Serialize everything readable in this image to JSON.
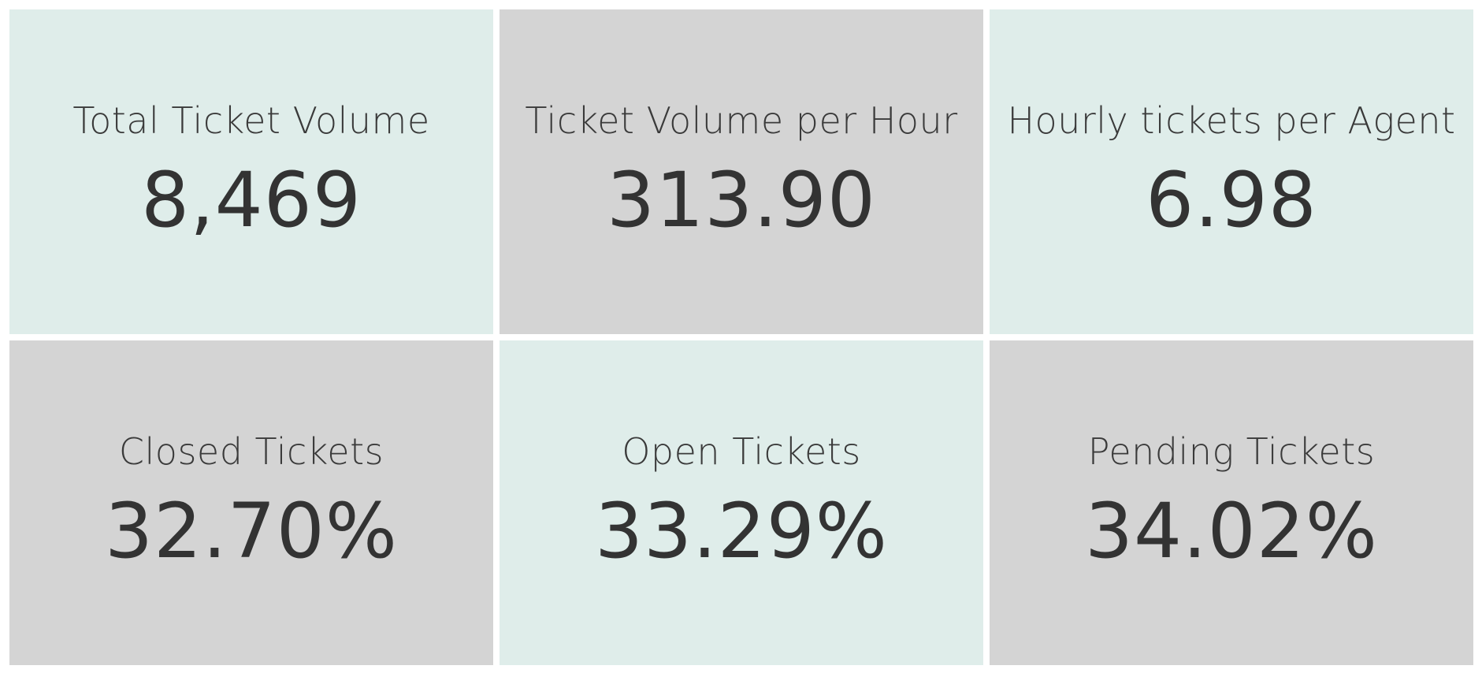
{
  "kpis": [
    {
      "label": "Total Ticket Volume",
      "value": "8,469",
      "bg": "#dfedea"
    },
    {
      "label": "Ticket Volume per Hour",
      "value": "313.90",
      "bg": "#d4d4d4"
    },
    {
      "label": "Hourly tickets per Agent",
      "value": "6.98",
      "bg": "#dfedea"
    },
    {
      "label": "Closed Tickets",
      "value": "32.70%",
      "bg": "#d4d4d4"
    },
    {
      "label": "Open Tickets",
      "value": "33.29%",
      "bg": "#dfedea"
    },
    {
      "label": "Pending Tickets",
      "value": "34.02%",
      "bg": "#d4d4d4"
    }
  ],
  "colors": {
    "text": "#333333",
    "tile_mint": "#dfedea",
    "tile_grey": "#d4d4d4",
    "background": "#ffffff"
  }
}
